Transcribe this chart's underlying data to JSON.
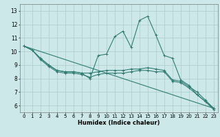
{
  "xlabel": "Humidex (Indice chaleur)",
  "bg_color": "#cde8e8",
  "grid_color": "#aacccc",
  "line_color": "#2e7d73",
  "xlim": [
    -0.5,
    23.5
  ],
  "ylim": [
    5.5,
    13.5
  ],
  "yticks": [
    6,
    7,
    8,
    9,
    10,
    11,
    12,
    13
  ],
  "xticks": [
    0,
    1,
    2,
    3,
    4,
    5,
    6,
    7,
    8,
    9,
    10,
    11,
    12,
    13,
    14,
    15,
    16,
    17,
    18,
    19,
    20,
    21,
    22,
    23
  ],
  "line1_x": [
    0,
    1,
    2,
    3,
    4,
    5,
    6,
    7,
    8,
    9,
    10,
    11,
    12,
    13,
    14,
    15,
    16,
    17,
    18,
    19,
    20,
    21,
    22,
    23
  ],
  "line1_y": [
    10.4,
    10.1,
    9.5,
    9.0,
    8.6,
    8.5,
    8.5,
    8.4,
    8.0,
    9.7,
    9.8,
    11.1,
    11.5,
    10.3,
    12.3,
    12.6,
    11.2,
    9.7,
    9.5,
    7.9,
    7.5,
    6.8,
    6.3,
    5.8
  ],
  "line2_x": [
    0,
    1,
    2,
    3,
    4,
    5,
    6,
    7,
    8,
    9,
    10,
    11,
    12,
    13,
    14,
    15,
    16,
    17,
    18,
    19,
    20,
    21,
    22,
    23
  ],
  "line2_y": [
    10.4,
    10.1,
    9.5,
    9.0,
    8.6,
    8.5,
    8.5,
    8.4,
    8.4,
    8.5,
    8.6,
    8.6,
    8.6,
    8.7,
    8.7,
    8.8,
    8.7,
    8.6,
    7.9,
    7.8,
    7.4,
    7.0,
    6.4,
    5.8
  ],
  "line3_x": [
    0,
    1,
    2,
    3,
    4,
    5,
    6,
    7,
    8,
    9,
    10,
    11,
    12,
    13,
    14,
    15,
    16,
    17,
    18,
    19,
    20,
    21,
    22,
    23
  ],
  "line3_y": [
    10.4,
    10.1,
    9.4,
    8.9,
    8.5,
    8.4,
    8.4,
    8.3,
    8.1,
    8.3,
    8.4,
    8.4,
    8.4,
    8.5,
    8.6,
    8.6,
    8.5,
    8.5,
    7.8,
    7.7,
    7.3,
    6.8,
    6.3,
    5.7
  ],
  "line4_x": [
    0,
    23
  ],
  "line4_y": [
    10.4,
    5.8
  ]
}
